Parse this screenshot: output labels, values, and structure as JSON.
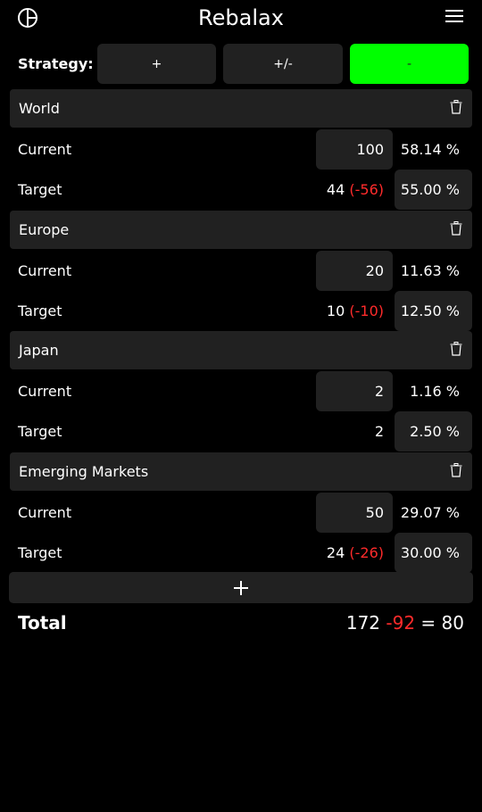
{
  "app": {
    "title": "Rebalax"
  },
  "strategy": {
    "label": "Strategy:",
    "options": [
      {
        "label": "+",
        "active": false
      },
      {
        "label": "+/-",
        "active": false
      },
      {
        "label": "-",
        "active": true
      }
    ]
  },
  "assets": [
    {
      "name": "World",
      "current_label": "Current",
      "current_value": "100",
      "current_pct": "58.14 %",
      "target_label": "Target",
      "target_value": "44",
      "target_delta": "(-56)",
      "target_pct": "55.00 %"
    },
    {
      "name": "Europe",
      "current_label": "Current",
      "current_value": "20",
      "current_pct": "11.63 %",
      "target_label": "Target",
      "target_value": "10",
      "target_delta": "(-10)",
      "target_pct": "12.50 %"
    },
    {
      "name": "Japan",
      "current_label": "Current",
      "current_value": "2",
      "current_pct": "1.16 %",
      "target_label": "Target",
      "target_value": "2",
      "target_delta": "",
      "target_pct": "2.50 %"
    },
    {
      "name": "Emerging Markets",
      "current_label": "Current",
      "current_value": "50",
      "current_pct": "29.07 %",
      "target_label": "Target",
      "target_value": "24",
      "target_delta": "(-26)",
      "target_pct": "30.00 %"
    }
  ],
  "add_button": {
    "icon": "plus-icon"
  },
  "total": {
    "label": "Total",
    "current": "172",
    "delta": "-92",
    "equals": "=",
    "result": "80"
  },
  "colors": {
    "background": "#000000",
    "surface": "#212121",
    "active": "#00ff00",
    "negative": "#ff2b2b",
    "text": "#ffffff"
  }
}
